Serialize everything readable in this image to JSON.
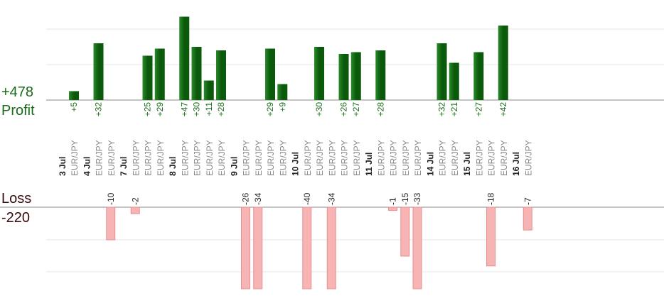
{
  "colors": {
    "profit": "#1a6b1a",
    "profit_bar_dark": "#0b5a0b",
    "profit_bar_light": "#2a8a2a",
    "loss_label": "#3a0a0a",
    "loss_bar": "#f7b4b4",
    "loss_bar_edge": "#e88f8f",
    "grid": "#e6e6e6",
    "axis": "#888888",
    "date_text": "#222222",
    "pair_text": "#8a8a8a"
  },
  "summary": {
    "profit_total": "+478",
    "profit_title": "Profit",
    "loss_title": "Loss",
    "loss_total": "-220"
  },
  "chart_data": {
    "type": "bar",
    "pair": "EUR/JPY",
    "dates": [
      "3 Jul",
      "4 Jul",
      "7 Jul",
      "8 Jul",
      "9 Jul",
      "10 Jul",
      "11 Jul",
      "14 Jul",
      "15 Jul",
      "16 Jul"
    ],
    "trades": [
      {
        "date": "3 Jul",
        "value": 5
      },
      {
        "date": "4 Jul",
        "value": 32
      },
      {
        "date": "4 Jul",
        "value": -10
      },
      {
        "date": "7 Jul",
        "value": -2
      },
      {
        "date": "7 Jul",
        "value": 25
      },
      {
        "date": "7 Jul",
        "value": 29
      },
      {
        "date": "8 Jul",
        "value": 47
      },
      {
        "date": "8 Jul",
        "value": 30
      },
      {
        "date": "8 Jul",
        "value": 11
      },
      {
        "date": "8 Jul",
        "value": 28
      },
      {
        "date": "9 Jul",
        "value": -26
      },
      {
        "date": "9 Jul",
        "value": -34
      },
      {
        "date": "9 Jul",
        "value": 29
      },
      {
        "date": "9 Jul",
        "value": 9
      },
      {
        "date": "10 Jul",
        "value": -40
      },
      {
        "date": "10 Jul",
        "value": 30
      },
      {
        "date": "10 Jul",
        "value": -34
      },
      {
        "date": "10 Jul",
        "value": 26
      },
      {
        "date": "10 Jul",
        "value": 27
      },
      {
        "date": "11 Jul",
        "value": 28
      },
      {
        "date": "11 Jul",
        "value": -1
      },
      {
        "date": "11 Jul",
        "value": -15
      },
      {
        "date": "11 Jul",
        "value": -33
      },
      {
        "date": "14 Jul",
        "value": 32
      },
      {
        "date": "14 Jul",
        "value": 21
      },
      {
        "date": "15 Jul",
        "value": 27
      },
      {
        "date": "15 Jul",
        "value": -18
      },
      {
        "date": "15 Jul",
        "value": 42
      },
      {
        "date": "16 Jul",
        "value": -7
      }
    ]
  }
}
